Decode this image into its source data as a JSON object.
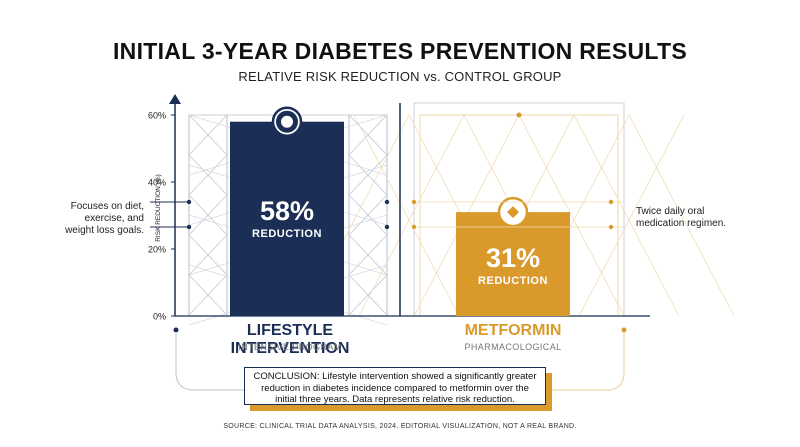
{
  "chart_data": {
    "type": "bar",
    "title": "INITIAL 3-YEAR DIABETES PREVENTION RESULTS",
    "subtitle": "RELATIVE RISK REDUCTION vs. CONTROL GROUP",
    "ylabel": "RISK REDUCTION (%)",
    "ylim": [
      0,
      60
    ],
    "yticks": [
      "0%",
      "20%",
      "40%",
      "60%"
    ],
    "categories": [
      "LIFESTYLE INTERVENTION",
      "METFORMIN"
    ],
    "category_subtitles": [
      "INTENSIVE PROGRAM",
      "PHARMACOLOGICAL"
    ],
    "values": [
      58,
      31
    ],
    "value_labels": [
      "58%",
      "31%"
    ],
    "value_sublabels": [
      "REDUCTION",
      "REDUCTION"
    ],
    "notes": [
      "Focuses on diet, exercise, and weight loss goals.",
      "Twice daily oral medication regimen."
    ],
    "colors": [
      "#1b2e55",
      "#d99a2b"
    ]
  },
  "conclusion": "CONCLUSION: Lifestyle intervention showed a significantly greater reduction in diabetes incidence compared to metformin over the initial three years. Data represents relative risk reduction.",
  "source": "SOURCE: CLINICAL TRIAL DATA ANALYSIS, 2024. EDITORIAL VISUALIZATION, NOT A REAL BRAND."
}
